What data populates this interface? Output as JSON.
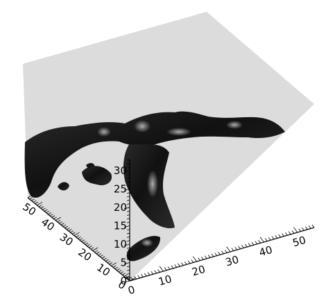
{
  "chart_data": {
    "type": "surface",
    "title": "",
    "xlabel": "",
    "ylabel": "",
    "zlabel": "",
    "x_ticks": [
      "0",
      "10",
      "20",
      "30",
      "40",
      "50"
    ],
    "y_ticks": [
      "0",
      "10",
      "20",
      "30",
      "40",
      "50"
    ],
    "z_ticks": [
      "0",
      "5",
      "10",
      "15",
      "20",
      "25",
      "30"
    ],
    "xlim": [
      0,
      55
    ],
    "ylim": [
      0,
      55
    ],
    "zlim": [
      0,
      33
    ],
    "grid": false,
    "colors": {
      "background": "#ffffff",
      "walls": "#dcdcdc",
      "surface_base": "#1e1e1e",
      "surface_highlight": "#8a8a8a",
      "axes": "#000000"
    },
    "isosurface_blobs": [
      {
        "name": "left-arm",
        "value": 1
      },
      {
        "name": "right-arm",
        "value": 1
      },
      {
        "name": "center-stem",
        "value": 1
      },
      {
        "name": "lower-fragment",
        "value": 1
      },
      {
        "name": "small-fragments",
        "value": 1
      }
    ]
  }
}
